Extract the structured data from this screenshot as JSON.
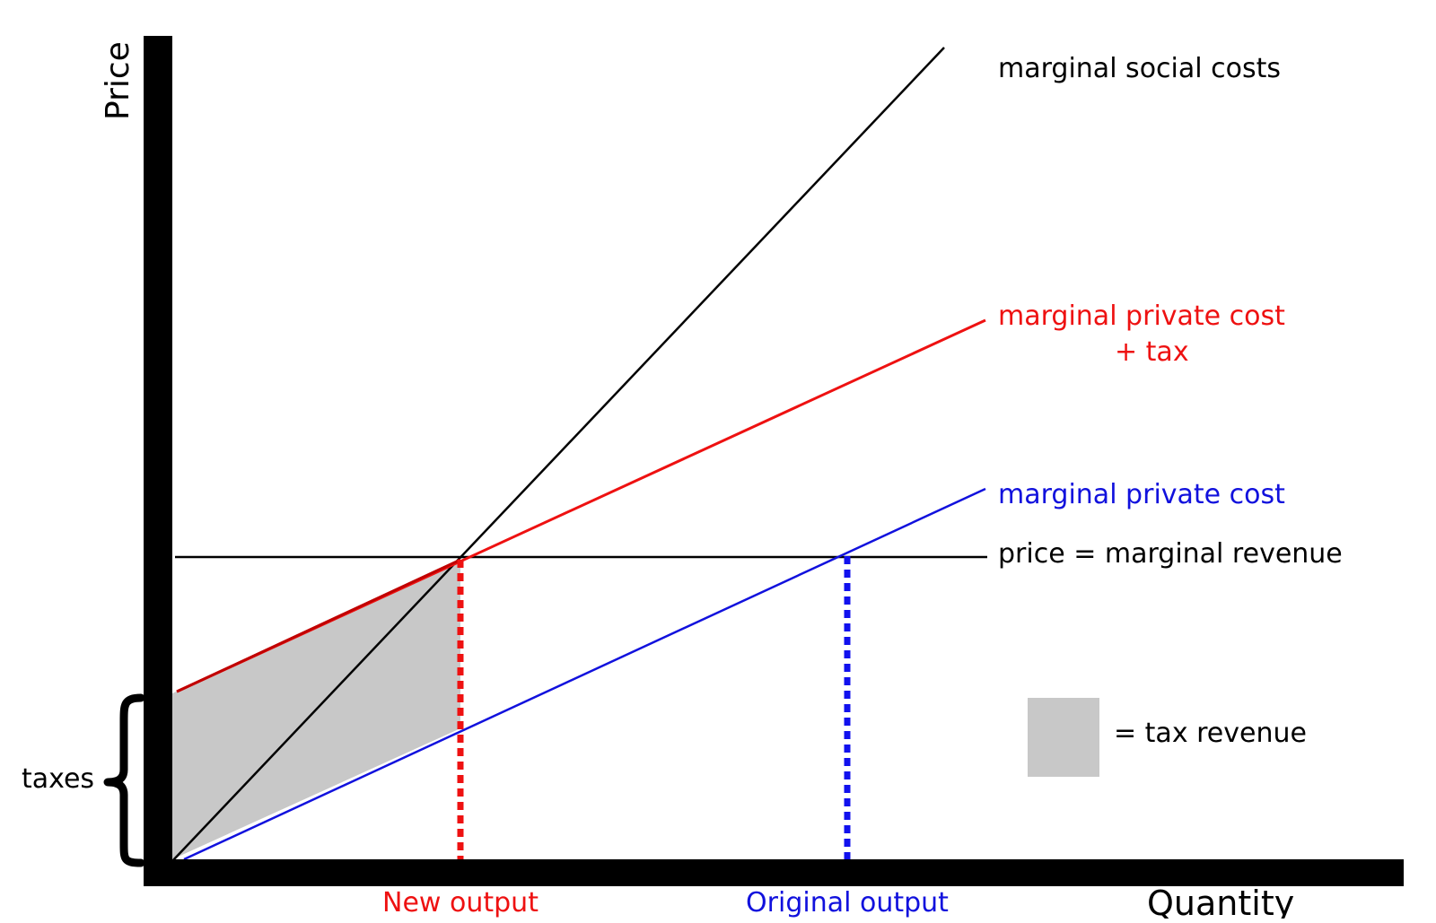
{
  "axes": {
    "y_label": "Price",
    "x_label": "Quantity"
  },
  "curves": {
    "msc": {
      "label": "marginal social costs",
      "color": "#000000"
    },
    "mpc_tax": {
      "label_line1": "marginal private cost",
      "label_line2": "+ tax",
      "color": "#ee1111"
    },
    "mpc": {
      "label": "marginal private cost",
      "color": "#1111dd"
    },
    "price": {
      "label": "price = marginal revenue",
      "color": "#000000"
    }
  },
  "outputs": {
    "new": {
      "label": "New output",
      "color": "#ee1111"
    },
    "original": {
      "label": "Original output",
      "color": "#1111dd"
    }
  },
  "taxes_label": "taxes",
  "legend": {
    "label": "= tax revenue",
    "swatch_color": "#c8c8c8"
  }
}
